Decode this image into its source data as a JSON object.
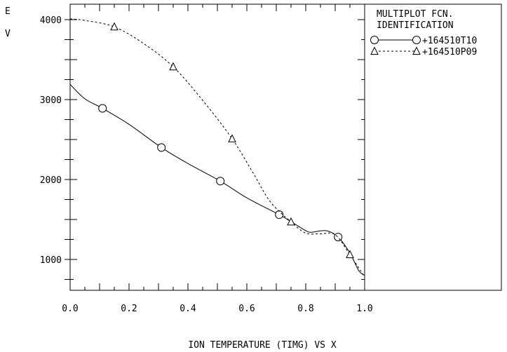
{
  "chart_data": {
    "type": "line",
    "title": "",
    "ylabel": "E\nV",
    "xlabel": "ION TEMPERATURE (TIMG) VS X",
    "xlim": [
      0.0,
      1.0
    ],
    "ylim": [
      600,
      4200
    ],
    "x_ticks": [
      "0.0",
      "0.2",
      "0.4",
      "0.6",
      "0.8",
      "1.0"
    ],
    "x_tick_values": [
      0.0,
      0.2,
      0.4,
      0.6,
      0.8,
      1.0
    ],
    "y_ticks": [
      "1000",
      "2000",
      "3000",
      "4000"
    ],
    "y_tick_values": [
      1000,
      2000,
      3000,
      4000
    ],
    "legend": {
      "title_lines": [
        "MULTIPLOT FCN.",
        "IDENTIFICATION"
      ],
      "placement": "right panel"
    },
    "series": [
      {
        "name": "+164510T10",
        "style": "solid",
        "marker": "circle",
        "x": [
          0.0,
          0.05,
          0.11,
          0.2,
          0.31,
          0.4,
          0.51,
          0.6,
          0.71,
          0.76,
          0.8,
          0.82,
          0.87,
          0.91,
          0.95,
          0.98,
          1.0
        ],
        "y": [
          3190,
          3010,
          2890,
          2690,
          2400,
          2200,
          1980,
          1770,
          1560,
          1450,
          1360,
          1340,
          1360,
          1280,
          1080,
          860,
          800
        ],
        "marker_x": [
          0.11,
          0.31,
          0.51,
          0.71,
          0.91
        ],
        "marker_y": [
          2890,
          2400,
          1980,
          1560,
          1280
        ]
      },
      {
        "name": "+164510P09",
        "style": "dashed",
        "marker": "triangle",
        "x": [
          0.0,
          0.05,
          0.15,
          0.25,
          0.35,
          0.45,
          0.55,
          0.62,
          0.68,
          0.75,
          0.8,
          0.85,
          0.9,
          0.95,
          1.0
        ],
        "y": [
          4010,
          3990,
          3910,
          3700,
          3410,
          2990,
          2510,
          2090,
          1720,
          1470,
          1330,
          1320,
          1310,
          1060,
          780
        ],
        "marker_x": [
          0.15,
          0.35,
          0.55,
          0.75,
          0.95
        ],
        "marker_y": [
          3910,
          3410,
          2510,
          1470,
          1060
        ]
      }
    ]
  }
}
